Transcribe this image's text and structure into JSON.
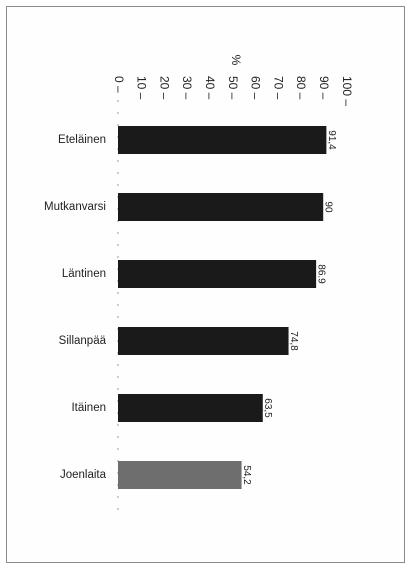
{
  "chart_data": {
    "type": "bar",
    "orientation": "horizontal",
    "unit_label": "%",
    "xlim": [
      0,
      100
    ],
    "ticks": [
      0,
      10,
      20,
      30,
      40,
      50,
      60,
      70,
      80,
      90,
      100
    ],
    "categories": [
      "Eteläinen",
      "Mutkanvarsi",
      "Läntinen",
      "Sillanpää",
      "Itäinen",
      "Joenlaita"
    ],
    "values": [
      91.4,
      90,
      86.9,
      74.8,
      63.5,
      54.2
    ],
    "value_labels": [
      "91,4",
      "90",
      "86.9",
      "74,8",
      "63,5",
      "54,2"
    ],
    "colors": [
      "#1a1a1a",
      "#1a1a1a",
      "#1a1a1a",
      "#1a1a1a",
      "#1a1a1a",
      "#6e6e6e"
    ],
    "grid": false
  }
}
